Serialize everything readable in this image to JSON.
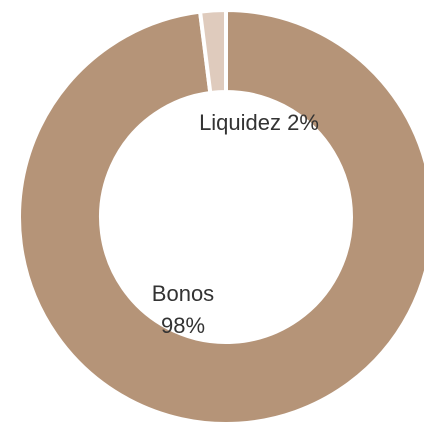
{
  "chart_data": {
    "type": "pie",
    "donut": true,
    "title": "",
    "legend": "none",
    "slices": [
      {
        "name": "Bonos",
        "value": 98,
        "label": "Bonos",
        "value_label": "98%",
        "color": "#b59478"
      },
      {
        "name": "Liquidez",
        "value": 2,
        "label": "Liquidez 2%",
        "value_label": "",
        "color": "#dfcbbd"
      }
    ]
  }
}
